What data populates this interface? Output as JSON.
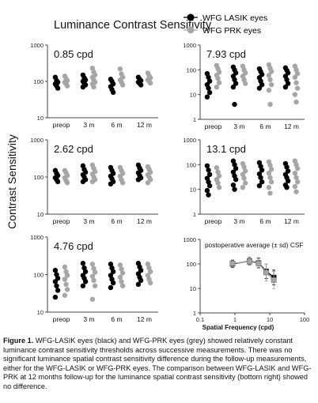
{
  "figure": {
    "title": "Luminance Contrast Sensitivity",
    "ylabel": "Contrast Sensitivity",
    "legend": [
      {
        "name": "WFG LASIK eyes",
        "color": "#000000"
      },
      {
        "name": "WFG PRK eyes",
        "color": "#a6a6a6"
      }
    ]
  },
  "caption": {
    "label": "Figure 1.",
    "text": "WFG-LASIK eyes (black) and WFG-PRK eyes (grey) showed relatively constant luminance contrast sensitivity thresholds across successive measurements. There was no significant luminance spatial contrast sensitivity difference during the follow-up measurements, either for the WFG-LASIK or WFG-PRK eyes. The comparison between WFG-LASIK and WFG-PRK at 12 months follow-up for the luminance spatial contrast sensitivity (bottom right) showed no difference."
  },
  "chart_data": [
    {
      "type": "scatter",
      "label": "0.85 cpd",
      "yscale": "log",
      "ylim": [
        10,
        1000
      ],
      "yticks": [
        "10",
        "100",
        "1000"
      ],
      "categories": [
        "preop",
        "3 m",
        "6 m",
        "12 m"
      ],
      "series": [
        {
          "name": "WFG LASIK eyes",
          "color": "#000000",
          "values": [
            [
              130,
              105,
              95,
              85,
              75,
              65
            ],
            [
              150,
              125,
              110,
              100,
              90,
              80,
              70
            ],
            [
              115,
              100,
              85,
              72,
              60,
              50
            ],
            [
              130,
              115,
              105,
              95,
              88,
              80
            ]
          ]
        },
        {
          "name": "WFG PRK eyes",
          "color": "#a6a6a6",
          "values": [
            [
              140,
              120,
              105,
              95,
              85,
              75
            ],
            [
              230,
              180,
              150,
              130,
              110,
              95,
              85,
              70
            ],
            [
              220,
              160,
              130,
              110,
              95,
              80
            ],
            [
              170,
              145,
              125,
              110,
              100,
              90
            ]
          ]
        }
      ]
    },
    {
      "type": "scatter",
      "label": "7.93 cpd",
      "yscale": "log",
      "ylim": [
        1,
        1000
      ],
      "yticks": [
        "1",
        "10",
        "100",
        "1000"
      ],
      "categories": [
        "preop",
        "3 m",
        "6 m",
        "12 m"
      ],
      "series": [
        {
          "name": "WFG LASIK eyes",
          "color": "#000000",
          "values": [
            [
              70,
              50,
              35,
              25,
              18,
              12,
              8
            ],
            [
              130,
              100,
              75,
              55,
              40,
              28,
              20,
              4
            ],
            [
              110,
              85,
              65,
              48,
              35,
              25,
              18
            ],
            [
              120,
              95,
              75,
              55,
              40,
              28,
              20
            ]
          ]
        },
        {
          "name": "WFG PRK eyes",
          "color": "#a6a6a6",
          "values": [
            [
              150,
              110,
              80,
              60,
              45,
              30,
              20
            ],
            [
              140,
              100,
              75,
              55,
              40,
              28
            ],
            [
              160,
              115,
              85,
              60,
              40,
              25,
              15,
              4
            ],
            [
              140,
              100,
              70,
              50,
              30,
              18,
              10,
              5
            ]
          ]
        }
      ]
    },
    {
      "type": "scatter",
      "label": "2.62 cpd",
      "yscale": "log",
      "ylim": [
        10,
        1000
      ],
      "yticks": [
        "10",
        "100",
        "1000"
      ],
      "categories": [
        "preop",
        "3 m",
        "6 m",
        "12 m"
      ],
      "series": [
        {
          "name": "WFG LASIK eyes",
          "color": "#000000",
          "values": [
            [
              150,
              125,
              110,
              95,
              85,
              75
            ],
            [
              200,
              160,
              135,
              115,
              100,
              85,
              75
            ],
            [
              180,
              150,
              125,
              105,
              90,
              75,
              65
            ],
            [
              210,
              175,
              150,
              130,
              110,
              95,
              85
            ]
          ]
        },
        {
          "name": "WFG PRK eyes",
          "color": "#a6a6a6",
          "values": [
            [
              150,
              130,
              110,
              95,
              80,
              70
            ],
            [
              210,
              170,
              140,
              120,
              100,
              85,
              75
            ],
            [
              180,
              150,
              125,
              105,
              85,
              70
            ],
            [
              190,
              160,
              135,
              115,
              100,
              85,
              70
            ]
          ]
        }
      ]
    },
    {
      "type": "scatter",
      "label": "13.1 cpd",
      "yscale": "log",
      "ylim": [
        1,
        1000
      ],
      "yticks": [
        "1",
        "10",
        "100",
        "1000"
      ],
      "categories": [
        "preop",
        "3 m",
        "6 m",
        "12 m"
      ],
      "series": [
        {
          "name": "WFG LASIK eyes",
          "color": "#000000",
          "values": [
            [
              90,
              60,
              40,
              28,
              20,
              14,
              9,
              6
            ],
            [
              140,
              100,
              70,
              50,
              35,
              25,
              15,
              10
            ],
            [
              120,
              85,
              60,
              42,
              30,
              20,
              14
            ],
            [
              110,
              80,
              55,
              40,
              30,
              22,
              15,
              12
            ]
          ]
        },
        {
          "name": "WFG PRK eyes",
          "color": "#a6a6a6",
          "values": [
            [
              75,
              50,
              35,
              25,
              18,
              12
            ],
            [
              110,
              80,
              55,
              40,
              28,
              18,
              12
            ],
            [
              130,
              95,
              65,
              45,
              30,
              20,
              12,
              7
            ],
            [
              140,
              100,
              70,
              45,
              30,
              20,
              13,
              8
            ]
          ]
        }
      ]
    },
    {
      "type": "scatter",
      "label": "4.76 cpd",
      "yscale": "log",
      "ylim": [
        10,
        1000
      ],
      "yticks": [
        "10",
        "100",
        "1000"
      ],
      "categories": [
        "preop",
        "3 m",
        "6 m",
        "12 m"
      ],
      "series": [
        {
          "name": "WFG LASIK eyes",
          "color": "#000000",
          "values": [
            [
              130,
              100,
              80,
              65,
              50,
              38,
              25
            ],
            [
              200,
              150,
              120,
              95,
              80,
              65,
              50
            ],
            [
              190,
              150,
              120,
              95,
              75,
              60,
              45
            ],
            [
              200,
              160,
              130,
              105,
              85,
              70,
              55
            ]
          ]
        },
        {
          "name": "WFG PRK eyes",
          "color": "#a6a6a6",
          "values": [
            [
              160,
              120,
              95,
              75,
              55,
              40,
              28
            ],
            [
              190,
              145,
              115,
              90,
              70,
              50,
              22
            ],
            [
              180,
              140,
              110,
              85,
              65,
              50
            ],
            [
              190,
              150,
              120,
              95,
              75,
              60
            ]
          ]
        }
      ]
    },
    {
      "type": "line",
      "label": "postoperative average (± sd) CSF",
      "xscale": "log",
      "yscale": "log",
      "xlim": [
        0.1,
        100
      ],
      "ylim": [
        1,
        1000
      ],
      "xticks": [
        "0.1",
        "1",
        "10",
        "100"
      ],
      "yticks": [
        "1",
        "10",
        "100",
        "1000"
      ],
      "xlabel": "Spatial Frequency (cpd)",
      "x": [
        0.85,
        2.62,
        4.76,
        7.93,
        13.1
      ],
      "series": [
        {
          "name": "WFG LASIK eyes",
          "color": "#000000",
          "values": [
            100,
            130,
            110,
            50,
            28
          ],
          "sd": [
            0.15,
            0.15,
            0.2,
            0.3,
            0.3
          ]
        },
        {
          "name": "WFG PRK eyes",
          "color": "#a6a6a6",
          "values": [
            105,
            125,
            105,
            45,
            22
          ],
          "sd": [
            0.15,
            0.15,
            0.2,
            0.35,
            0.35
          ]
        }
      ]
    }
  ]
}
